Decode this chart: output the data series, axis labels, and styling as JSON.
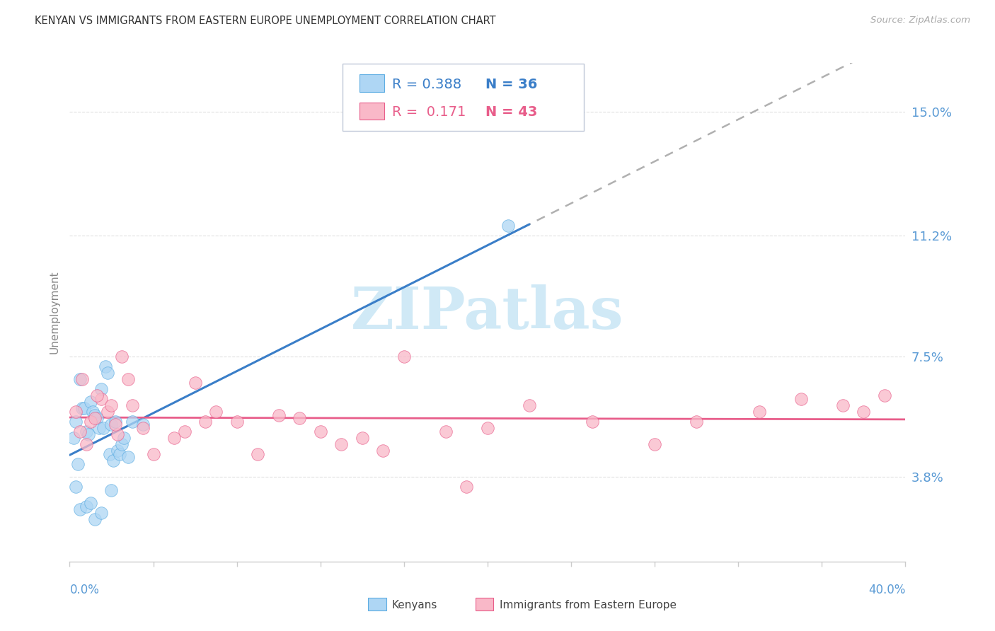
{
  "title": "KENYAN VS IMMIGRANTS FROM EASTERN EUROPE UNEMPLOYMENT CORRELATION CHART",
  "source": "Source: ZipAtlas.com",
  "ylabel": "Unemployment",
  "yticks": [
    3.8,
    7.5,
    11.2,
    15.0
  ],
  "ytick_labels": [
    "3.8%",
    "7.5%",
    "11.2%",
    "15.0%"
  ],
  "xmin": 0.0,
  "xmax": 40.0,
  "ymin": 1.2,
  "ymax": 16.5,
  "legend_r1": "R = 0.388",
  "legend_n1": "N = 36",
  "legend_r2": "R =  0.171",
  "legend_n2": "N = 43",
  "color_kenyan_fill": "#aed6f4",
  "color_kenyan_edge": "#5dade2",
  "color_eastern_fill": "#f9b8c8",
  "color_eastern_edge": "#e85d8a",
  "color_line_kenyan": "#3a7ec8",
  "color_line_eastern": "#e85d8a",
  "color_axis_labels": "#5b9bd5",
  "color_title": "#333333",
  "color_source": "#aaaaaa",
  "color_ylabel": "#888888",
  "color_grid": "#e0e0e0",
  "watermark_text": "ZIPatlas",
  "watermark_color": "#c8e6f5",
  "kenyan_x": [
    0.2,
    0.3,
    0.4,
    0.5,
    0.6,
    0.7,
    0.8,
    0.9,
    1.0,
    1.1,
    1.2,
    1.3,
    1.4,
    1.5,
    1.6,
    1.7,
    1.8,
    1.9,
    2.0,
    2.1,
    2.2,
    2.3,
    2.4,
    2.5,
    2.6,
    2.8,
    3.0,
    3.5,
    0.3,
    0.5,
    0.8,
    1.0,
    1.2,
    1.5,
    2.0,
    21.0
  ],
  "kenyan_y": [
    5.0,
    5.5,
    4.2,
    6.8,
    5.9,
    5.9,
    5.2,
    5.1,
    6.1,
    5.8,
    5.7,
    5.6,
    5.3,
    6.5,
    5.3,
    7.2,
    7.0,
    4.5,
    5.4,
    4.3,
    5.5,
    4.6,
    4.5,
    4.8,
    5.0,
    4.4,
    5.5,
    5.4,
    3.5,
    2.8,
    2.9,
    3.0,
    2.5,
    2.7,
    3.4,
    11.5
  ],
  "eastern_x": [
    0.3,
    0.5,
    0.8,
    1.0,
    1.2,
    1.5,
    1.8,
    2.0,
    2.3,
    2.5,
    2.8,
    3.0,
    3.5,
    4.0,
    5.0,
    5.5,
    6.0,
    6.5,
    7.0,
    8.0,
    9.0,
    10.0,
    11.0,
    12.0,
    13.0,
    14.0,
    15.0,
    16.0,
    18.0,
    20.0,
    22.0,
    25.0,
    28.0,
    30.0,
    33.0,
    35.0,
    37.0,
    38.0,
    39.0,
    0.6,
    1.3,
    2.2,
    19.0
  ],
  "eastern_y": [
    5.8,
    5.2,
    4.8,
    5.5,
    5.6,
    6.2,
    5.8,
    6.0,
    5.1,
    7.5,
    6.8,
    6.0,
    5.3,
    4.5,
    5.0,
    5.2,
    6.7,
    5.5,
    5.8,
    5.5,
    4.5,
    5.7,
    5.6,
    5.2,
    4.8,
    5.0,
    4.6,
    7.5,
    5.2,
    5.3,
    6.0,
    5.5,
    4.8,
    5.5,
    5.8,
    6.2,
    6.0,
    5.8,
    6.3,
    6.8,
    6.3,
    5.4,
    3.5
  ]
}
